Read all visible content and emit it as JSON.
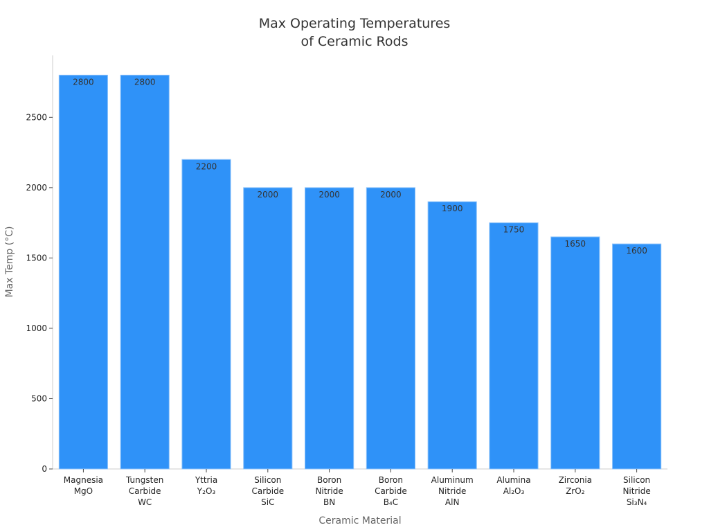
{
  "chart_data": {
    "type": "bar",
    "title": [
      "Max Operating Temperatures",
      "of Ceramic Rods"
    ],
    "xlabel": "Ceramic Material",
    "ylabel": "Max Temp (°C)",
    "categories": [
      [
        "Magnesia",
        "MgO"
      ],
      [
        "Tungsten",
        "Carbide",
        "WC"
      ],
      [
        "Yttria",
        "Y₂O₃"
      ],
      [
        "Silicon",
        "Carbide",
        "SiC"
      ],
      [
        "Boron",
        "Nitride",
        "BN"
      ],
      [
        "Boron",
        "Carbide",
        "B₄C"
      ],
      [
        "Aluminum",
        "Nitride",
        "AlN"
      ],
      [
        "Alumina",
        "Al₂O₃"
      ],
      [
        "Zirconia",
        "ZrO₂"
      ],
      [
        "Silicon",
        "Nitride",
        "Si₃N₄"
      ]
    ],
    "values": [
      2800,
      2800,
      2200,
      2000,
      2000,
      2000,
      1900,
      1750,
      1650,
      1600
    ],
    "yticks": [
      0,
      500,
      1000,
      1500,
      2000,
      2500
    ],
    "ylim": [
      0,
      2940
    ],
    "grid": false,
    "bar_color": "#2f92f8",
    "bar_edge_color": "#8cc2fa"
  }
}
